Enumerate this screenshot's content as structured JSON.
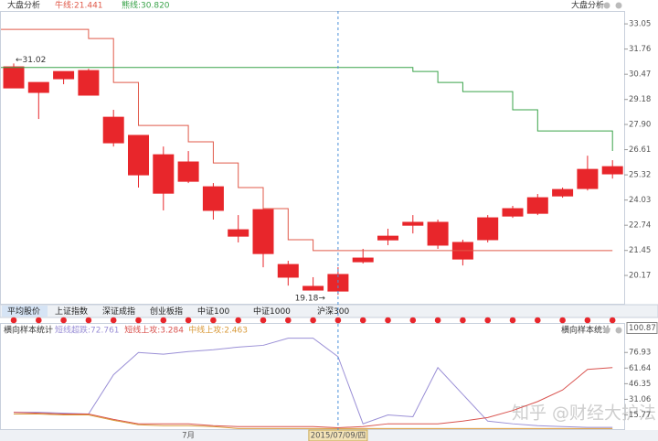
{
  "tabs": [
    "平均股价",
    "上证指数",
    "深证成指",
    "创业板指",
    "中证100",
    "中证1000",
    "沪深300"
  ],
  "watermark": "知乎 @财经大护法",
  "chart_data": [
    {
      "type": "candlestick",
      "title": "大盘分析",
      "title_right": "大盘分析",
      "categories": [
        null,
        null,
        null,
        null,
        null,
        null,
        null,
        null,
        null,
        null,
        null,
        null,
        null,
        null,
        null,
        null,
        null,
        null,
        null,
        null,
        null,
        null,
        null,
        null,
        null
      ],
      "open": [
        29.77,
        30.05,
        30.61,
        30.66,
        28.27,
        27.34,
        26.35,
        25.98,
        24.71,
        22.51,
        23.54,
        20.73,
        19.61,
        20.22,
        21.06,
        22.18,
        22.89,
        22.89,
        21.86,
        23.12,
        23.59,
        24.15,
        24.57,
        25.6,
        25.74
      ],
      "high": [
        31.02,
        30.05,
        30.61,
        30.75,
        28.65,
        27.34,
        26.77,
        26.54,
        24.9,
        23.26,
        23.73,
        20.92,
        20.08,
        20.59,
        21.53,
        22.56,
        23.26,
        23.03,
        22.0,
        23.26,
        23.73,
        24.34,
        24.67,
        26.3,
        26.07
      ],
      "low": [
        29.77,
        28.18,
        29.96,
        29.4,
        26.77,
        24.67,
        23.5,
        24.9,
        23.03,
        21.86,
        20.59,
        19.65,
        19.4,
        19.18,
        20.78,
        21.72,
        22.32,
        21.53,
        20.68,
        21.86,
        23.12,
        23.26,
        24.15,
        24.52,
        25.13
      ],
      "close": [
        30.85,
        29.54,
        30.24,
        29.4,
        26.96,
        25.32,
        24.38,
        24.99,
        23.5,
        22.18,
        21.29,
        20.08,
        19.42,
        19.37,
        20.87,
        21.99,
        22.74,
        21.72,
        21.01,
        22.0,
        23.21,
        23.35,
        24.24,
        24.62,
        25.37
      ],
      "color": "#e8262b",
      "lines": [
        {
          "name": "牛线:21.441",
          "color": "#e05a4a",
          "values": [
            32.77,
            32.77,
            32.77,
            32.3,
            30.05,
            27.85,
            27.85,
            27.01,
            25.93,
            24.67,
            23.59,
            22.0,
            21.44,
            21.44,
            21.44,
            21.44,
            21.44,
            21.44,
            21.44,
            21.44,
            21.44,
            21.44,
            21.44,
            21.44,
            21.44
          ]
        },
        {
          "name": "熊线:30.820",
          "color": "#3aa34a",
          "values": [
            30.82,
            30.82,
            30.82,
            30.82,
            30.82,
            30.82,
            30.82,
            30.82,
            30.82,
            30.82,
            30.82,
            30.82,
            30.82,
            30.82,
            30.82,
            30.82,
            30.61,
            30.05,
            29.58,
            29.58,
            28.65,
            27.57,
            27.57,
            27.57,
            26.54
          ]
        }
      ],
      "annotations": [
        {
          "index": 0,
          "value": 31.02,
          "label": "←31.02"
        },
        {
          "index": 13,
          "value": 19.18,
          "label": "19.18→"
        }
      ],
      "ylim": [
        18.72,
        33.71
      ],
      "yticks": [
        33.05,
        31.76,
        30.47,
        29.18,
        {
          "value": 27.9,
          "label": "27.90"
        },
        26.61,
        25.32,
        24.03,
        22.74,
        21.45,
        20.17
      ]
    },
    {
      "type": "line",
      "title": "横向样本统计",
      "title_right": "横向样本统计",
      "categories": [
        null,
        null,
        null,
        null,
        null,
        null,
        null,
        "7月",
        null,
        null,
        null,
        null,
        null,
        "2015/07/09/四",
        null,
        null,
        null,
        null,
        null,
        null,
        null,
        null,
        null,
        null,
        null
      ],
      "highlight_category": 13,
      "series": [
        {
          "name": "短线超跌:72.761",
          "color": "#9a8fd6",
          "values": [
            18.4,
            18.4,
            17.5,
            16.7,
            55.1,
            76.9,
            75.2,
            77.8,
            79.6,
            82.2,
            83.9,
            90.9,
            90.9,
            72.76,
            7.1,
            15.8,
            14.0,
            62.1,
            35.9,
            9.7,
            7.1,
            5.3,
            4.4,
            3.6,
            3.6
          ]
        },
        {
          "name": "短线上攻:3.284",
          "color": "#d9534f",
          "values": [
            18.4,
            17.5,
            16.7,
            16.7,
            11.4,
            7.1,
            7.1,
            7.1,
            5.3,
            4.4,
            4.4,
            4.4,
            4.4,
            3.28,
            4.4,
            7.1,
            7.1,
            7.1,
            9.7,
            13.2,
            20.1,
            28.9,
            40.2,
            60.3,
            62.1
          ]
        },
        {
          "name": "中线上攻:2.463",
          "color": "#d99a3a",
          "values": [
            16.7,
            16.7,
            15.8,
            15.8,
            10.5,
            6.2,
            5.3,
            5.3,
            4.4,
            2.46,
            2.46,
            2.46,
            2.46,
            2.46,
            2.46,
            2.46,
            2.46,
            2.46,
            2.46,
            2.46,
            2.46,
            2.46,
            2.46,
            2.46,
            2.46
          ]
        }
      ],
      "value_box": 100.87,
      "ylim": [
        1,
        104
      ],
      "yticks": [
        76.93,
        61.64,
        46.35,
        31.06,
        15.77
      ]
    }
  ]
}
